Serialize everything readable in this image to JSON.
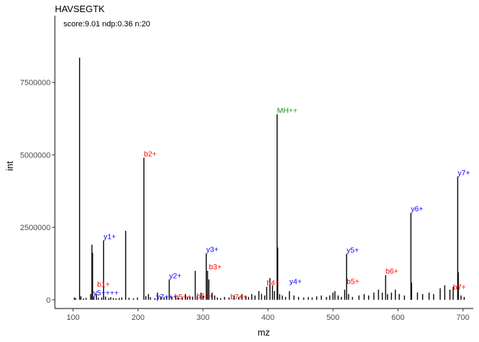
{
  "chart_data": {
    "type": "bar",
    "title": "HAVSEGTK",
    "subtitle": "score:9.01 ndp:0.36  n:20",
    "xlabel": "mz",
    "ylabel": "int",
    "xlim": [
      72,
      716
    ],
    "ylim": [
      -300000,
      9800000
    ],
    "xticks": [
      100,
      200,
      300,
      400,
      500,
      600,
      700
    ],
    "xtick_labels": [
      "100",
      "200",
      "300",
      "400",
      "500",
      "600",
      "700"
    ],
    "yticks": [
      0,
      2500000,
      5000000,
      7500000
    ],
    "ytick_labels": [
      "0",
      "2500000",
      "5000000",
      "7500000"
    ],
    "grid": false,
    "colors": {
      "b": "#ff0000",
      "y": "#0000ff",
      "precursor": "#228b22",
      "peak": "#000000"
    },
    "peaks": [
      {
        "mz": 102,
        "int": 80000
      },
      {
        "mz": 104,
        "int": 60000
      },
      {
        "mz": 110,
        "int": 8350000
      },
      {
        "mz": 112,
        "int": 120000
      },
      {
        "mz": 116,
        "int": 50000
      },
      {
        "mz": 120,
        "int": 70000
      },
      {
        "mz": 127,
        "int": 200000
      },
      {
        "mz": 129,
        "int": 1900000
      },
      {
        "mz": 130,
        "int": 1620000
      },
      {
        "mz": 132,
        "int": 100000
      },
      {
        "mz": 136,
        "int": 200000
      },
      {
        "mz": 139,
        "int": 70000
      },
      {
        "mz": 144,
        "int": 80000
      },
      {
        "mz": 147,
        "int": 2050000
      },
      {
        "mz": 150,
        "int": 110000
      },
      {
        "mz": 155,
        "int": 60000
      },
      {
        "mz": 158,
        "int": 90000
      },
      {
        "mz": 162,
        "int": 60000
      },
      {
        "mz": 166,
        "int": 50000
      },
      {
        "mz": 171,
        "int": 60000
      },
      {
        "mz": 175,
        "int": 80000
      },
      {
        "mz": 181,
        "int": 2380000
      },
      {
        "mz": 186,
        "int": 70000
      },
      {
        "mz": 193,
        "int": 50000
      },
      {
        "mz": 199,
        "int": 80000
      },
      {
        "mz": 209,
        "int": 4900000
      },
      {
        "mz": 212,
        "int": 130000
      },
      {
        "mz": 216,
        "int": 200000
      },
      {
        "mz": 219,
        "int": 90000
      },
      {
        "mz": 226,
        "int": 60000
      },
      {
        "mz": 230,
        "int": 250000
      },
      {
        "mz": 235,
        "int": 120000
      },
      {
        "mz": 240,
        "int": 90000
      },
      {
        "mz": 244,
        "int": 110000
      },
      {
        "mz": 248,
        "int": 700000
      },
      {
        "mz": 252,
        "int": 100000
      },
      {
        "mz": 258,
        "int": 130000
      },
      {
        "mz": 262,
        "int": 80000
      },
      {
        "mz": 268,
        "int": 100000
      },
      {
        "mz": 273,
        "int": 200000
      },
      {
        "mz": 276,
        "int": 100000
      },
      {
        "mz": 280,
        "int": 90000
      },
      {
        "mz": 284,
        "int": 110000
      },
      {
        "mz": 288,
        "int": 1000000
      },
      {
        "mz": 291,
        "int": 150000
      },
      {
        "mz": 297,
        "int": 250000
      },
      {
        "mz": 300,
        "int": 150000
      },
      {
        "mz": 305,
        "int": 1600000
      },
      {
        "mz": 307,
        "int": 1000000
      },
      {
        "mz": 309,
        "int": 700000
      },
      {
        "mz": 314,
        "int": 250000
      },
      {
        "mz": 318,
        "int": 150000
      },
      {
        "mz": 322,
        "int": 80000
      },
      {
        "mz": 327,
        "int": 60000
      },
      {
        "mz": 333,
        "int": 100000
      },
      {
        "mz": 340,
        "int": 80000
      },
      {
        "mz": 348,
        "int": 150000
      },
      {
        "mz": 355,
        "int": 100000
      },
      {
        "mz": 360,
        "int": 200000
      },
      {
        "mz": 366,
        "int": 130000
      },
      {
        "mz": 370,
        "int": 100000
      },
      {
        "mz": 375,
        "int": 200000
      },
      {
        "mz": 380,
        "int": 150000
      },
      {
        "mz": 386,
        "int": 300000
      },
      {
        "mz": 390,
        "int": 200000
      },
      {
        "mz": 395,
        "int": 150000
      },
      {
        "mz": 398,
        "int": 450000
      },
      {
        "mz": 403,
        "int": 750000
      },
      {
        "mz": 407,
        "int": 500000
      },
      {
        "mz": 410,
        "int": 300000
      },
      {
        "mz": 414,
        "int": 6400000
      },
      {
        "mz": 415,
        "int": 1800000
      },
      {
        "mz": 418,
        "int": 200000
      },
      {
        "mz": 422,
        "int": 150000
      },
      {
        "mz": 427,
        "int": 100000
      },
      {
        "mz": 433,
        "int": 300000
      },
      {
        "mz": 440,
        "int": 150000
      },
      {
        "mz": 447,
        "int": 100000
      },
      {
        "mz": 455,
        "int": 80000
      },
      {
        "mz": 462,
        "int": 100000
      },
      {
        "mz": 468,
        "int": 80000
      },
      {
        "mz": 475,
        "int": 120000
      },
      {
        "mz": 482,
        "int": 150000
      },
      {
        "mz": 490,
        "int": 100000
      },
      {
        "mz": 495,
        "int": 150000
      },
      {
        "mz": 500,
        "int": 250000
      },
      {
        "mz": 503,
        "int": 300000
      },
      {
        "mz": 508,
        "int": 150000
      },
      {
        "mz": 513,
        "int": 100000
      },
      {
        "mz": 518,
        "int": 350000
      },
      {
        "mz": 521,
        "int": 1580000
      },
      {
        "mz": 524,
        "int": 200000
      },
      {
        "mz": 530,
        "int": 100000
      },
      {
        "mz": 540,
        "int": 150000
      },
      {
        "mz": 548,
        "int": 200000
      },
      {
        "mz": 555,
        "int": 150000
      },
      {
        "mz": 563,
        "int": 250000
      },
      {
        "mz": 570,
        "int": 350000
      },
      {
        "mz": 576,
        "int": 250000
      },
      {
        "mz": 581,
        "int": 850000
      },
      {
        "mz": 584,
        "int": 200000
      },
      {
        "mz": 590,
        "int": 250000
      },
      {
        "mz": 596,
        "int": 350000
      },
      {
        "mz": 602,
        "int": 200000
      },
      {
        "mz": 610,
        "int": 150000
      },
      {
        "mz": 620,
        "int": 3000000
      },
      {
        "mz": 621,
        "int": 600000
      },
      {
        "mz": 630,
        "int": 250000
      },
      {
        "mz": 638,
        "int": 200000
      },
      {
        "mz": 648,
        "int": 250000
      },
      {
        "mz": 655,
        "int": 200000
      },
      {
        "mz": 665,
        "int": 400000
      },
      {
        "mz": 672,
        "int": 500000
      },
      {
        "mz": 680,
        "int": 350000
      },
      {
        "mz": 685,
        "int": 450000
      },
      {
        "mz": 692,
        "int": 4250000
      },
      {
        "mz": 693,
        "int": 950000
      },
      {
        "mz": 697,
        "int": 150000
      },
      {
        "mz": 702,
        "int": 100000
      }
    ],
    "annotations": [
      {
        "label": "b1+",
        "mz": 137,
        "int": 400000,
        "type": "b"
      },
      {
        "label": "y1+",
        "mz": 147,
        "int": 2050000,
        "type": "y"
      },
      {
        "label": "y5++++",
        "mz": 131,
        "int": 100000,
        "type": "y"
      },
      {
        "label": "b2+",
        "mz": 209,
        "int": 4900000,
        "type": "b"
      },
      {
        "label": "y2+",
        "mz": 248,
        "int": 700000,
        "type": "y"
      },
      {
        "label": "y7+++",
        "mz": 228,
        "int": -30000,
        "type": "y"
      },
      {
        "label": "b5++",
        "mz": 256,
        "int": -30000,
        "type": "b"
      },
      {
        "label": "b6++",
        "mz": 290,
        "int": 0,
        "type": "b"
      },
      {
        "label": "y3+",
        "mz": 305,
        "int": 1600000,
        "type": "y"
      },
      {
        "label": "b3+",
        "mz": 309,
        "int": 1000000,
        "type": "b"
      },
      {
        "label": "b7++",
        "mz": 342,
        "int": -30000,
        "type": "b"
      },
      {
        "label": "b4+",
        "mz": 398,
        "int": 450000,
        "type": "b"
      },
      {
        "label": "MH++",
        "mz": 414,
        "int": 6400000,
        "type": "precursor"
      },
      {
        "label": "y4+",
        "mz": 433,
        "int": 500000,
        "type": "y"
      },
      {
        "label": "y5+",
        "mz": 521,
        "int": 1580000,
        "type": "y"
      },
      {
        "label": "b5+",
        "mz": 521,
        "int": 500000,
        "type": "b"
      },
      {
        "label": "b6+",
        "mz": 581,
        "int": 850000,
        "type": "b"
      },
      {
        "label": "y6+",
        "mz": 620,
        "int": 3000000,
        "type": "y"
      },
      {
        "label": "b7+",
        "mz": 685,
        "int": 300000,
        "type": "b"
      },
      {
        "label": "y7+",
        "mz": 692,
        "int": 4250000,
        "type": "y"
      }
    ]
  }
}
